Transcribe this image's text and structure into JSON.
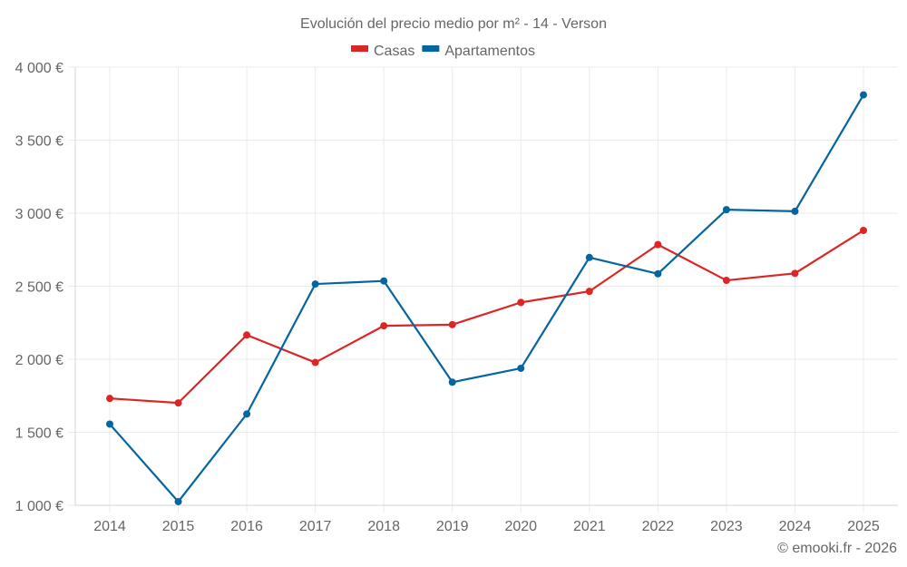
{
  "chart_data": {
    "type": "line",
    "title": "Evolución del precio medio por m² - 14 - Verson",
    "xlabel": "",
    "ylabel": "",
    "categories": [
      "2014",
      "2015",
      "2016",
      "2017",
      "2018",
      "2019",
      "2020",
      "2021",
      "2022",
      "2023",
      "2024",
      "2025"
    ],
    "y_ticks": [
      1000,
      1500,
      2000,
      2500,
      3000,
      3500,
      4000
    ],
    "y_tick_labels": [
      "1 000 €",
      "1 500 €",
      "2 000 €",
      "2 500 €",
      "3 000 €",
      "3 500 €",
      "4 000 €"
    ],
    "ylim": [
      1000,
      4000
    ],
    "grid": true,
    "legend_position": "top-center",
    "series": [
      {
        "name": "Casas",
        "color": "#dc2626",
        "values": [
          1732,
          1701,
          2166,
          1978,
          2229,
          2237,
          2389,
          2465,
          2785,
          2540,
          2588,
          2882
        ]
      },
      {
        "name": "Apartamentos",
        "color": "#0565a0",
        "values": [
          1556,
          1025,
          1625,
          2515,
          2536,
          1843,
          1938,
          2697,
          2585,
          3024,
          3013,
          3810
        ]
      }
    ],
    "footer": "© emooki.fr - 2026"
  }
}
